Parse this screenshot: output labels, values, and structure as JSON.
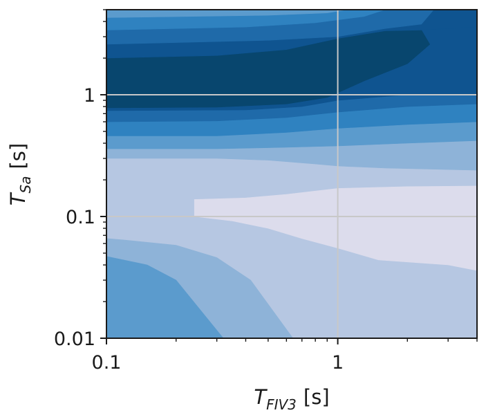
{
  "chart_data": {
    "type": "contour",
    "title": "",
    "xlabel": {
      "main": "T",
      "sub": "FIV3",
      "unit": "[s]"
    },
    "ylabel": {
      "main": "T",
      "sub": "Sa",
      "unit": "[s]"
    },
    "xscale": "log",
    "yscale": "log",
    "xlim": [
      0.1,
      4.0
    ],
    "ylim": [
      0.01,
      5.0
    ],
    "xticks": [
      {
        "value": 0.1,
        "label": "0.1"
      },
      {
        "value": 1,
        "label": "1"
      }
    ],
    "yticks": [
      {
        "value": 0.01,
        "label": "0.01"
      },
      {
        "value": 0.1,
        "label": "0.1"
      },
      {
        "value": 1,
        "label": "1"
      }
    ],
    "grid": true,
    "grid_color": "#c8c8c8",
    "colormap": "Blues",
    "band_colors": [
      "#f6f0f8",
      "#dcdcec",
      "#b6c7e2",
      "#8eb3d8",
      "#5b9bcd",
      "#2f82c0",
      "#1f6aa9",
      "#0f5490",
      "#08466e"
    ],
    "bands": [
      {
        "level": 0,
        "polygon": [
          [
            0.1,
            0.01
          ],
          [
            4,
            0.01
          ],
          [
            4,
            5
          ],
          [
            0.1,
            5
          ]
        ]
      },
      {
        "level": 1,
        "polygon": [
          [
            0.1,
            0.01
          ],
          [
            4,
            0.01
          ],
          [
            4,
            5
          ],
          [
            0.1,
            5
          ]
        ]
      },
      {
        "level": 2,
        "polygon": [
          [
            0.1,
            0.01
          ],
          [
            4,
            0.01
          ],
          [
            4,
            5
          ],
          [
            0.1,
            5
          ]
        ]
      },
      {
        "level": 3,
        "polygon": [
          [
            0.1,
            0.01
          ],
          [
            0.64,
            0.01
          ],
          [
            0.42,
            0.03
          ],
          [
            0.3,
            0.046
          ],
          [
            0.2,
            0.058
          ],
          [
            0.12,
            0.064
          ],
          [
            0.1,
            0.066
          ]
        ]
      },
      {
        "level": 4,
        "polygon": [
          [
            0.1,
            0.01
          ],
          [
            0.32,
            0.01
          ],
          [
            0.2,
            0.03
          ],
          [
            0.15,
            0.04
          ],
          [
            0.1,
            0.047
          ]
        ]
      },
      {
        "level": 0,
        "polygon": [
          [
            0.78,
            0.145
          ],
          [
            2.0,
            0.152
          ],
          [
            4,
            0.155
          ],
          [
            4,
            0.094
          ],
          [
            2.0,
            0.09
          ],
          [
            0.82,
            0.095
          ],
          [
            0.62,
            0.115
          ],
          [
            0.58,
            0.13
          ],
          [
            0.63,
            0.14
          ]
        ]
      },
      {
        "level": 1,
        "polygon": [
          [
            0.24,
            0.138
          ],
          [
            0.4,
            0.142
          ],
          [
            0.6,
            0.152
          ],
          [
            1.0,
            0.17
          ],
          [
            2.0,
            0.176
          ],
          [
            4,
            0.178
          ],
          [
            4,
            0.036
          ],
          [
            3.0,
            0.04
          ],
          [
            1.5,
            0.044
          ],
          [
            1.0,
            0.055
          ],
          [
            0.7,
            0.066
          ],
          [
            0.5,
            0.08
          ],
          [
            0.35,
            0.092
          ],
          [
            0.24,
            0.1
          ]
        ]
      },
      {
        "level": 3,
        "polygon": [
          [
            0.1,
            0.3
          ],
          [
            0.3,
            0.3
          ],
          [
            0.5,
            0.29
          ],
          [
            0.8,
            0.27
          ],
          [
            1.0,
            0.26
          ],
          [
            1.6,
            0.25
          ],
          [
            4,
            0.24
          ],
          [
            4,
            5
          ],
          [
            0.1,
            5
          ]
        ]
      },
      {
        "level": 4,
        "polygon": [
          [
            0.1,
            0.36
          ],
          [
            0.3,
            0.36
          ],
          [
            0.6,
            0.37
          ],
          [
            1.0,
            0.38
          ],
          [
            2.0,
            0.4
          ],
          [
            4,
            0.42
          ],
          [
            4,
            5
          ],
          [
            0.1,
            5
          ]
        ]
      },
      {
        "level": 5,
        "polygon": [
          [
            0.1,
            0.46
          ],
          [
            0.3,
            0.46
          ],
          [
            0.6,
            0.49
          ],
          [
            1.0,
            0.53
          ],
          [
            2.0,
            0.57
          ],
          [
            4,
            0.6
          ],
          [
            4,
            5
          ],
          [
            0.1,
            5
          ]
        ]
      },
      {
        "level": 6,
        "polygon": [
          [
            0.1,
            0.6
          ],
          [
            0.3,
            0.61
          ],
          [
            0.6,
            0.65
          ],
          [
            1.0,
            0.72
          ],
          [
            2.0,
            0.8
          ],
          [
            4,
            0.84
          ],
          [
            4,
            5
          ],
          [
            0.1,
            5
          ]
        ]
      },
      {
        "level": 7,
        "polygon": [
          [
            0.1,
            0.74
          ],
          [
            0.4,
            0.75
          ],
          [
            0.7,
            0.8
          ],
          [
            1.0,
            0.9
          ],
          [
            2.0,
            1.0
          ],
          [
            4,
            1.02
          ],
          [
            4,
            5
          ],
          [
            0.1,
            5
          ]
        ]
      },
      {
        "level": 8,
        "polygon": [
          [
            0.1,
            0.78
          ],
          [
            0.3,
            0.79
          ],
          [
            0.6,
            0.84
          ],
          [
            0.9,
            0.95
          ],
          [
            1.3,
            1.3
          ],
          [
            2.0,
            1.8
          ],
          [
            2.5,
            2.6
          ],
          [
            2.3,
            3.4
          ],
          [
            1.6,
            3.35
          ],
          [
            1.0,
            2.9
          ],
          [
            0.6,
            2.35
          ],
          [
            0.3,
            2.1
          ],
          [
            0.1,
            2.0
          ]
        ]
      },
      {
        "level": 7,
        "polygon": [
          [
            0.1,
            2.0
          ],
          [
            0.3,
            2.1
          ],
          [
            0.6,
            2.35
          ],
          [
            1.0,
            2.9
          ],
          [
            1.6,
            3.35
          ],
          [
            2.3,
            3.4
          ],
          [
            4,
            3.6
          ],
          [
            4,
            5
          ],
          [
            0.1,
            5
          ]
        ]
      },
      {
        "level": 6,
        "polygon": [
          [
            0.1,
            2.6
          ],
          [
            0.5,
            2.8
          ],
          [
            1.0,
            3.0
          ],
          [
            1.6,
            3.5
          ],
          [
            2.3,
            3.8
          ],
          [
            2.6,
            5
          ],
          [
            0.1,
            5
          ]
        ]
      },
      {
        "level": 5,
        "polygon": [
          [
            0.1,
            3.4
          ],
          [
            0.4,
            3.6
          ],
          [
            0.8,
            3.9
          ],
          [
            1.3,
            4.4
          ],
          [
            1.6,
            5
          ],
          [
            0.1,
            5
          ]
        ]
      },
      {
        "level": 4,
        "polygon": [
          [
            0.1,
            4.3
          ],
          [
            0.5,
            4.5
          ],
          [
            0.9,
            4.7
          ],
          [
            1.1,
            5
          ],
          [
            0.1,
            5
          ]
        ]
      }
    ]
  }
}
